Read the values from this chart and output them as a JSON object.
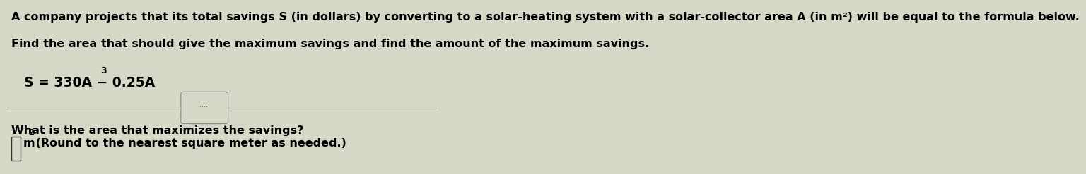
{
  "bg_color": "#d8d8c8",
  "text_color": "#000000",
  "fig_width": 12.0,
  "fig_height": 2.3,
  "line1": "A company projects that its total savings S (in dollars) by converting to a solar-heating system with a solar-collector area A (in m²) will be equal to the formula below.",
  "line2": "Find the area that should give the maximum savings and find the amount of the maximum savings.",
  "formula_main": "S = 330A − 0.25A",
  "formula_exp": "3",
  "separator_dots": ".....",
  "question": "What is the area that maximizes the savings?",
  "font_size_body": 11.5,
  "font_size_formula": 13.5,
  "font_size_question": 11.5,
  "font_size_answer": 11.5
}
